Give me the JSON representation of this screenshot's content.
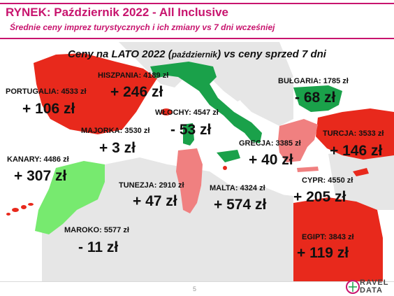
{
  "header": {
    "title": "RYNEK: Październik 2022 - All Inclusive",
    "subtitle": "Średnie ceny imprez turystycznych i ich zmiany vs 7 dni wcześniej"
  },
  "map": {
    "title_part1": "Ceny na LATO 2022 (",
    "title_small": "październik",
    "title_part2": ") vs ceny sprzed 7 dni",
    "colors": {
      "increase": "#e8291c",
      "decrease": "#1aa14a",
      "small_increase": "#f08080",
      "small_decrease": "#77ea6f",
      "land_gray": "#e6e6e6"
    },
    "destinations": [
      {
        "id": "portugalia",
        "label": "PORTUGALIA: 4533 zł",
        "change": "+ 106 zł"
      },
      {
        "id": "hiszpania",
        "label": "HISZPANIA: 4189 zł",
        "change": "+ 246 zł"
      },
      {
        "id": "wlochy",
        "label": "WŁOCHY: 4547 zł",
        "change": "- 53 zł"
      },
      {
        "id": "bulgaria",
        "label": "BUŁGARIA: 1785 zł",
        "change": "- 68 zł"
      },
      {
        "id": "majorka",
        "label": "MAJORKA: 3530 zł",
        "change": "+ 3 zł"
      },
      {
        "id": "turcja",
        "label": "TURCJA: 3533 zł",
        "change": "+ 146 zł"
      },
      {
        "id": "grecja",
        "label": "GRECJA: 3385 zł",
        "change": "+ 40 zł"
      },
      {
        "id": "kanary",
        "label": "KANARY: 4486 zł",
        "change": "+ 307 zł"
      },
      {
        "id": "tunezja",
        "label": "TUNEZJA: 2910 zł",
        "change": "+ 47 zł"
      },
      {
        "id": "malta",
        "label": "MALTA: 4324 zł",
        "change": "+ 574 zł"
      },
      {
        "id": "cypr",
        "label": "CYPR: 4550 zł",
        "change": "+ 205 zł"
      },
      {
        "id": "maroko",
        "label": "MAROKO: 5577 zł",
        "change": "- 11 zł"
      },
      {
        "id": "egipt",
        "label": "EGIPT: 3843 zł",
        "change": "+ 119 zł"
      }
    ]
  },
  "footer": {
    "page_number": "5",
    "logo_line1": "RAVEL",
    "logo_line2": "DATA"
  }
}
